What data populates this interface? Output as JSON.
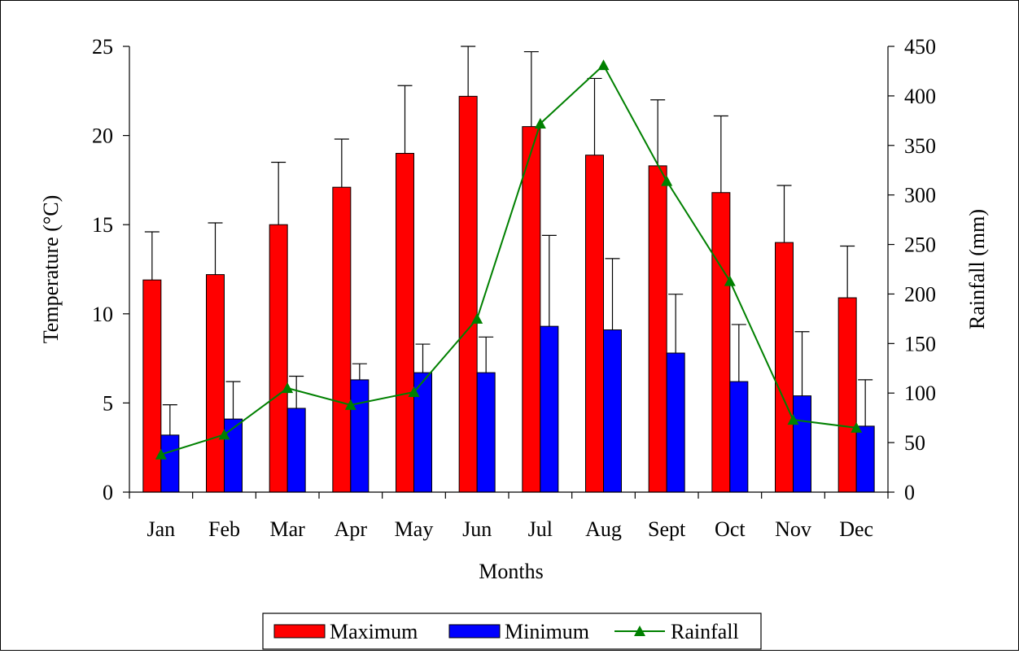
{
  "chart_data": {
    "type": "bar",
    "title": "",
    "xlabel": "Months",
    "ylabel_left": "Temperature (°C)",
    "ylabel_right": "Rainfall (mm)",
    "categories": [
      "Jan",
      "Feb",
      "Mar",
      "Apr",
      "May",
      "Jun",
      "Jul",
      "Aug",
      "Sept",
      "Oct",
      "Nov",
      "Dec"
    ],
    "ylim_left": [
      0,
      25
    ],
    "yticks_left": [
      0,
      5,
      10,
      15,
      20,
      25
    ],
    "ylim_right": [
      0,
      450
    ],
    "yticks_right": [
      0,
      50,
      100,
      150,
      200,
      250,
      300,
      350,
      400,
      450
    ],
    "series": [
      {
        "name": "Maximum",
        "kind": "bar",
        "axis": "left",
        "color": "#ff0000",
        "values": [
          11.9,
          12.2,
          15.0,
          17.1,
          19.0,
          22.2,
          20.5,
          18.9,
          18.3,
          16.8,
          14.0,
          10.9
        ],
        "error_plus": [
          2.7,
          2.9,
          3.5,
          2.7,
          3.8,
          2.8,
          4.2,
          4.3,
          3.7,
          4.3,
          3.2,
          2.9
        ]
      },
      {
        "name": "Minimum",
        "kind": "bar",
        "axis": "left",
        "color": "#0000ff",
        "values": [
          3.2,
          4.1,
          4.7,
          6.3,
          6.7,
          6.7,
          9.3,
          9.1,
          7.8,
          6.2,
          5.4,
          3.7
        ],
        "error_plus": [
          1.7,
          2.1,
          1.8,
          0.9,
          1.6,
          2.0,
          5.1,
          4.0,
          3.3,
          3.2,
          3.6,
          2.6
        ]
      },
      {
        "name": "Rainfall",
        "kind": "line",
        "axis": "right",
        "color": "#008000",
        "marker": "triangle",
        "values": [
          38,
          58,
          105,
          88,
          101,
          175,
          372,
          431,
          314,
          213,
          73,
          65
        ]
      }
    ],
    "legend_position": "bottom-center",
    "grid": false
  }
}
